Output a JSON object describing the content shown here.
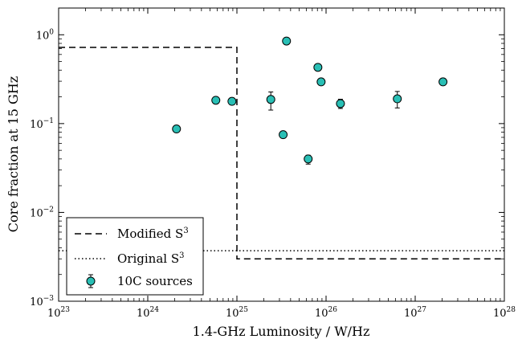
{
  "chart_data": {
    "type": "scatter",
    "title": "",
    "xlabel": "1.4-GHz Luminosity / W/Hz",
    "ylabel": "Core fraction at 15 GHz",
    "xscale": "log",
    "yscale": "log",
    "xlim": [
      1e+23,
      1e+28
    ],
    "ylim": [
      0.001,
      2
    ],
    "x_ticks": [
      {
        "value": 1e+23,
        "base": "10",
        "exp": "23"
      },
      {
        "value": 1e+24,
        "base": "10",
        "exp": "24"
      },
      {
        "value": 1e+25,
        "base": "10",
        "exp": "25"
      },
      {
        "value": 1e+26,
        "base": "10",
        "exp": "26"
      },
      {
        "value": 1e+27,
        "base": "10",
        "exp": "27"
      },
      {
        "value": 1e+28,
        "base": "10",
        "exp": "28"
      }
    ],
    "y_ticks": [
      {
        "value": 0.001,
        "base": "10",
        "exp": "−3"
      },
      {
        "value": 0.01,
        "base": "10",
        "exp": "−2"
      },
      {
        "value": 0.1,
        "base": "10",
        "exp": "−1"
      },
      {
        "value": 1,
        "base": "10",
        "exp": "0"
      }
    ],
    "grid": false,
    "legend_position": "bottom-left",
    "series": [
      {
        "name": "Modified S",
        "name_sup": "3",
        "style": "dashed",
        "color": "#000000",
        "points": [
          {
            "x": 1e+23,
            "y": 0.72
          },
          {
            "x": 1e+25,
            "y": 0.72
          },
          {
            "x": 1e+25,
            "y": 0.003
          },
          {
            "x": 1e+28,
            "y": 0.003
          }
        ]
      },
      {
        "name": "Original S",
        "name_sup": "3",
        "style": "dotted",
        "color": "#000000",
        "points": [
          {
            "x": 1e+23,
            "y": 0.0037
          },
          {
            "x": 1e+28,
            "y": 0.0037
          }
        ]
      },
      {
        "name": "10C sources",
        "style": "marker",
        "color": "#29bfb5",
        "points": [
          {
            "x": 2.1e+24,
            "y": 0.087
          },
          {
            "x": 5.8e+24,
            "y": 0.183
          },
          {
            "x": 8.8e+24,
            "y": 0.178
          },
          {
            "x": 2.4e+25,
            "y": 0.187,
            "err_low": 0.045,
            "err_high": 0.04
          },
          {
            "x": 3.3e+25,
            "y": 0.075
          },
          {
            "x": 3.6e+25,
            "y": 0.85
          },
          {
            "x": 6.3e+25,
            "y": 0.04,
            "err_low": 0.005,
            "err_high": 0.004
          },
          {
            "x": 8.1e+25,
            "y": 0.43
          },
          {
            "x": 8.8e+25,
            "y": 0.295
          },
          {
            "x": 1.45e+26,
            "y": 0.168,
            "err_low": 0.02,
            "err_high": 0.02
          },
          {
            "x": 6.3e+26,
            "y": 0.19,
            "err_low": 0.04,
            "err_high": 0.04
          },
          {
            "x": 2.05e+27,
            "y": 0.295
          }
        ]
      }
    ]
  }
}
